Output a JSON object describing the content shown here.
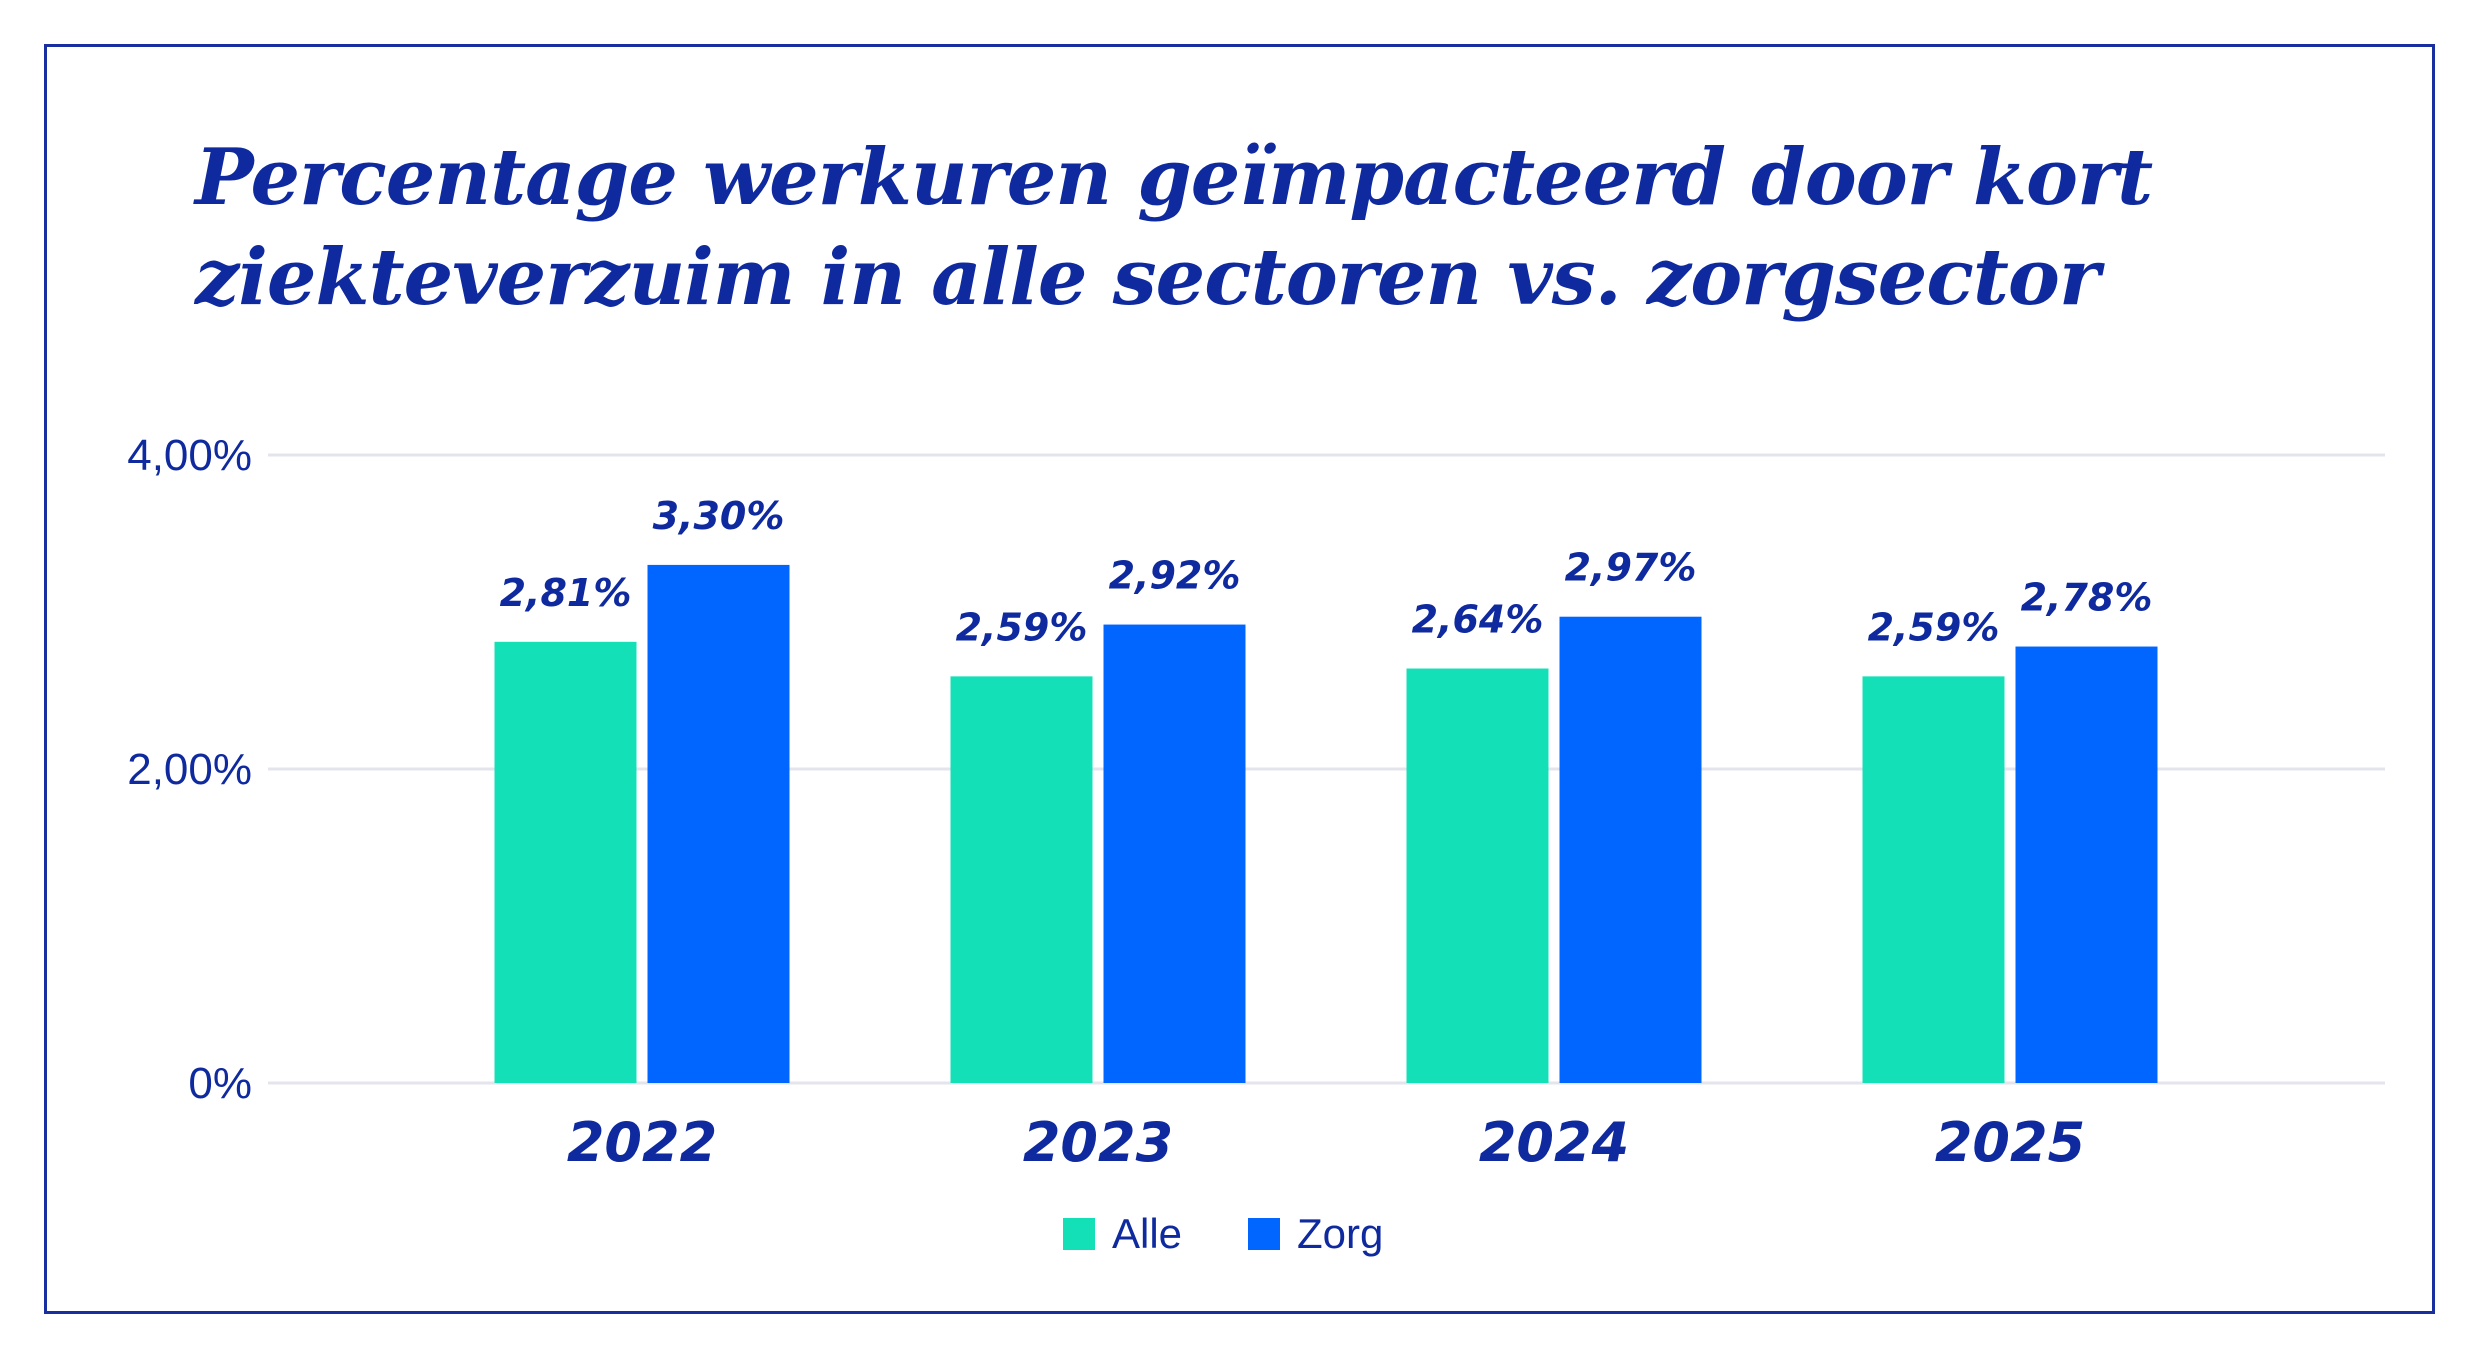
{
  "chart_data": {
    "type": "bar",
    "title_lines": [
      "Percentage werkuren geïmpacteerd door kort",
      "ziekteverzuim in alle sectoren vs. zorgsector"
    ],
    "categories": [
      "2022",
      "2023",
      "2024",
      "2025"
    ],
    "series": [
      {
        "name": "Alle",
        "color": "#14e0b8",
        "values": [
          2.81,
          2.59,
          2.64,
          2.59
        ],
        "labels": [
          "2,81%",
          "2,59%",
          "2,64%",
          "2,59%"
        ]
      },
      {
        "name": "Zorg",
        "color": "#0066ff",
        "values": [
          3.3,
          2.92,
          2.97,
          2.78
        ],
        "labels": [
          "3,30%",
          "2,92%",
          "2,97%",
          "2,78%"
        ]
      }
    ],
    "y_ticks": [
      {
        "value": 0,
        "label": "0%"
      },
      {
        "value": 2,
        "label": "2,00%"
      },
      {
        "value": 4,
        "label": "4,00%"
      }
    ],
    "ylim": [
      0,
      4
    ],
    "grid": true,
    "legend_position": "bottom-center",
    "accent_color": "#0f2a9e"
  }
}
